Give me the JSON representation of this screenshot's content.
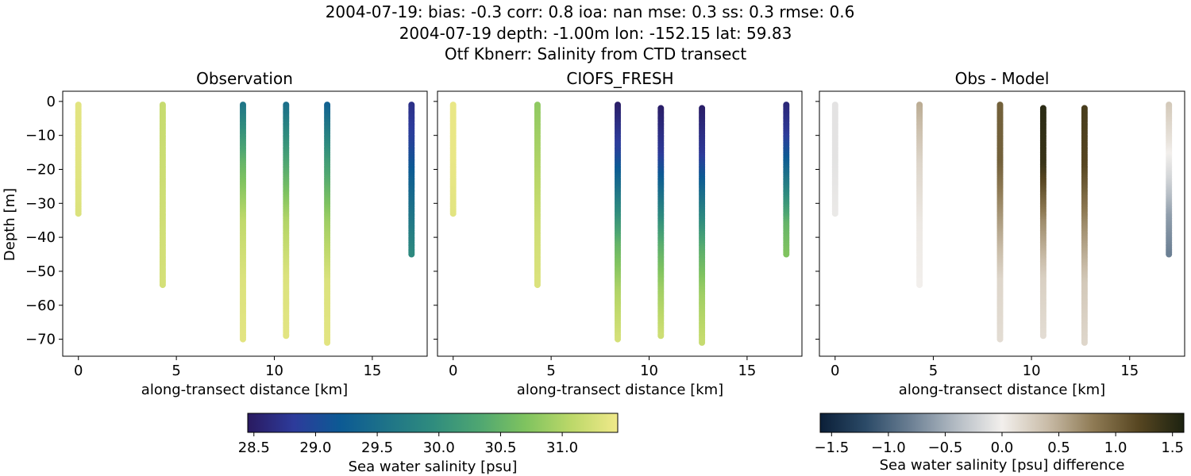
{
  "title_lines": [
    "2004-07-19: bias: -0.3  corr: 0.8  ioa: nan  mse: 0.3  ss: 0.3  rmse: 0.6",
    "2004-07-19 depth: -1.00m lon: -152.15 lat: 59.83",
    "Otf Kbnerr: Salinity from CTD transect"
  ],
  "colorbars": {
    "salinity": {
      "label": "Sea water salinity [psu]",
      "ticks": [
        28.5,
        29.0,
        29.5,
        30.0,
        30.5,
        31.0
      ],
      "range": [
        28.45,
        31.45
      ],
      "colormap": [
        "#2a1a60",
        "#2d3b9b",
        "#0c5a94",
        "#1e7388",
        "#2f8c7e",
        "#4ea672",
        "#7fc35f",
        "#bcd869",
        "#f0e98a"
      ]
    },
    "difference": {
      "label": "Sea water salinity [psu] difference",
      "ticks": [
        -1.5,
        -1.0,
        -0.5,
        0.0,
        0.5,
        1.0,
        1.5
      ],
      "tick_labels": [
        "−1.5",
        "−1.0",
        "−0.5",
        "0.0",
        "0.5",
        "1.0",
        "1.5"
      ],
      "range": [
        -1.6,
        1.6
      ],
      "colormap": [
        "#0b1f38",
        "#2b4a67",
        "#6c8094",
        "#b4bcc4",
        "#f2efec",
        "#c9bca8",
        "#8f7b55",
        "#574621",
        "#1c2210"
      ]
    }
  },
  "chart_data": [
    {
      "type": "scatter",
      "title": "Observation",
      "xlabel": "along-transect distance [km]",
      "ylabel": "Depth [m]",
      "xlim": [
        -0.8,
        17.8
      ],
      "ylim": [
        -75,
        3
      ],
      "xticks": [
        0,
        5,
        10,
        15
      ],
      "yticks": [
        0,
        -10,
        -20,
        -30,
        -40,
        -50,
        -60,
        -70
      ],
      "ytick_labels": [
        "0",
        "−10",
        "−20",
        "−30",
        "−40",
        "−50",
        "−60",
        "−70"
      ],
      "colorbar": "salinity",
      "profiles": [
        {
          "x": 0.0,
          "depth_top": -1,
          "depth_bottom": -33,
          "values_top_to_bottom": [
            31.35,
            31.35,
            31.3
          ]
        },
        {
          "x": 4.3,
          "depth_top": -1,
          "depth_bottom": -54,
          "values_top_to_bottom": [
            31.15,
            31.2,
            31.25
          ]
        },
        {
          "x": 8.4,
          "depth_top": -1,
          "depth_bottom": -70,
          "values_top_to_bottom": [
            29.6,
            30.5,
            31.1,
            31.3,
            31.35
          ]
        },
        {
          "x": 10.6,
          "depth_top": -1,
          "depth_bottom": -69,
          "values_top_to_bottom": [
            29.5,
            30.3,
            31.0,
            31.3,
            31.35
          ]
        },
        {
          "x": 12.7,
          "depth_top": -1,
          "depth_bottom": -71,
          "values_top_to_bottom": [
            29.3,
            30.2,
            30.9,
            31.3,
            31.35
          ]
        },
        {
          "x": 17.0,
          "depth_top": -1,
          "depth_bottom": -45,
          "values_top_to_bottom": [
            28.7,
            28.9,
            29.3,
            29.6,
            29.9
          ]
        }
      ]
    },
    {
      "type": "scatter",
      "title": "CIOFS_FRESH",
      "xlabel": "along-transect distance [km]",
      "ylabel": "",
      "xlim": [
        -0.8,
        17.8
      ],
      "ylim": [
        -75,
        3
      ],
      "xticks": [
        0,
        5,
        10,
        15
      ],
      "yticks": [
        0,
        -10,
        -20,
        -30,
        -40,
        -50,
        -60,
        -70
      ],
      "ytick_labels": [],
      "colorbar": "salinity",
      "profiles": [
        {
          "x": 0.0,
          "depth_top": -1,
          "depth_bottom": -33,
          "values_top_to_bottom": [
            31.4,
            31.4,
            31.35
          ]
        },
        {
          "x": 4.3,
          "depth_top": -1,
          "depth_bottom": -54,
          "values_top_to_bottom": [
            30.8,
            31.0,
            31.2,
            31.3
          ]
        },
        {
          "x": 8.4,
          "depth_top": -1,
          "depth_bottom": -70,
          "values_top_to_bottom": [
            28.5,
            28.9,
            29.7,
            30.5,
            31.0,
            31.25
          ]
        },
        {
          "x": 10.6,
          "depth_top": -2,
          "depth_bottom": -69,
          "values_top_to_bottom": [
            28.5,
            28.8,
            29.6,
            30.4,
            30.9,
            31.2
          ]
        },
        {
          "x": 12.7,
          "depth_top": -2,
          "depth_bottom": -71,
          "values_top_to_bottom": [
            28.5,
            28.8,
            29.6,
            30.4,
            30.9,
            31.15
          ]
        },
        {
          "x": 17.0,
          "depth_top": -1,
          "depth_bottom": -45,
          "values_top_to_bottom": [
            28.6,
            28.8,
            29.3,
            29.9,
            30.5,
            30.7
          ]
        }
      ]
    },
    {
      "type": "scatter",
      "title": "Obs - Model",
      "xlabel": "along-transect distance [km]",
      "ylabel": "",
      "xlim": [
        -0.8,
        17.8
      ],
      "ylim": [
        -75,
        3
      ],
      "xticks": [
        0,
        5,
        10,
        15
      ],
      "yticks": [
        0,
        -10,
        -20,
        -30,
        -40,
        -50,
        -60,
        -70
      ],
      "ytick_labels": [],
      "colorbar": "difference",
      "profiles": [
        {
          "x": 0.0,
          "depth_top": -1,
          "depth_bottom": -33,
          "values_top_to_bottom": [
            -0.1,
            -0.1,
            -0.05
          ]
        },
        {
          "x": 4.3,
          "depth_top": -1,
          "depth_bottom": -54,
          "values_top_to_bottom": [
            0.5,
            0.2,
            0.05,
            0.0
          ]
        },
        {
          "x": 8.4,
          "depth_top": -1,
          "depth_bottom": -70,
          "values_top_to_bottom": [
            1.0,
            1.0,
            0.6,
            0.2,
            0.15
          ]
        },
        {
          "x": 10.6,
          "depth_top": -2,
          "depth_bottom": -69,
          "values_top_to_bottom": [
            1.5,
            1.4,
            0.7,
            0.25,
            0.15
          ]
        },
        {
          "x": 12.7,
          "depth_top": -2,
          "depth_bottom": -71,
          "values_top_to_bottom": [
            1.3,
            1.2,
            0.7,
            0.3,
            0.2
          ]
        },
        {
          "x": 17.0,
          "depth_top": -1,
          "depth_bottom": -45,
          "values_top_to_bottom": [
            0.3,
            0.1,
            -0.2,
            -0.6,
            -0.8
          ]
        }
      ]
    }
  ]
}
